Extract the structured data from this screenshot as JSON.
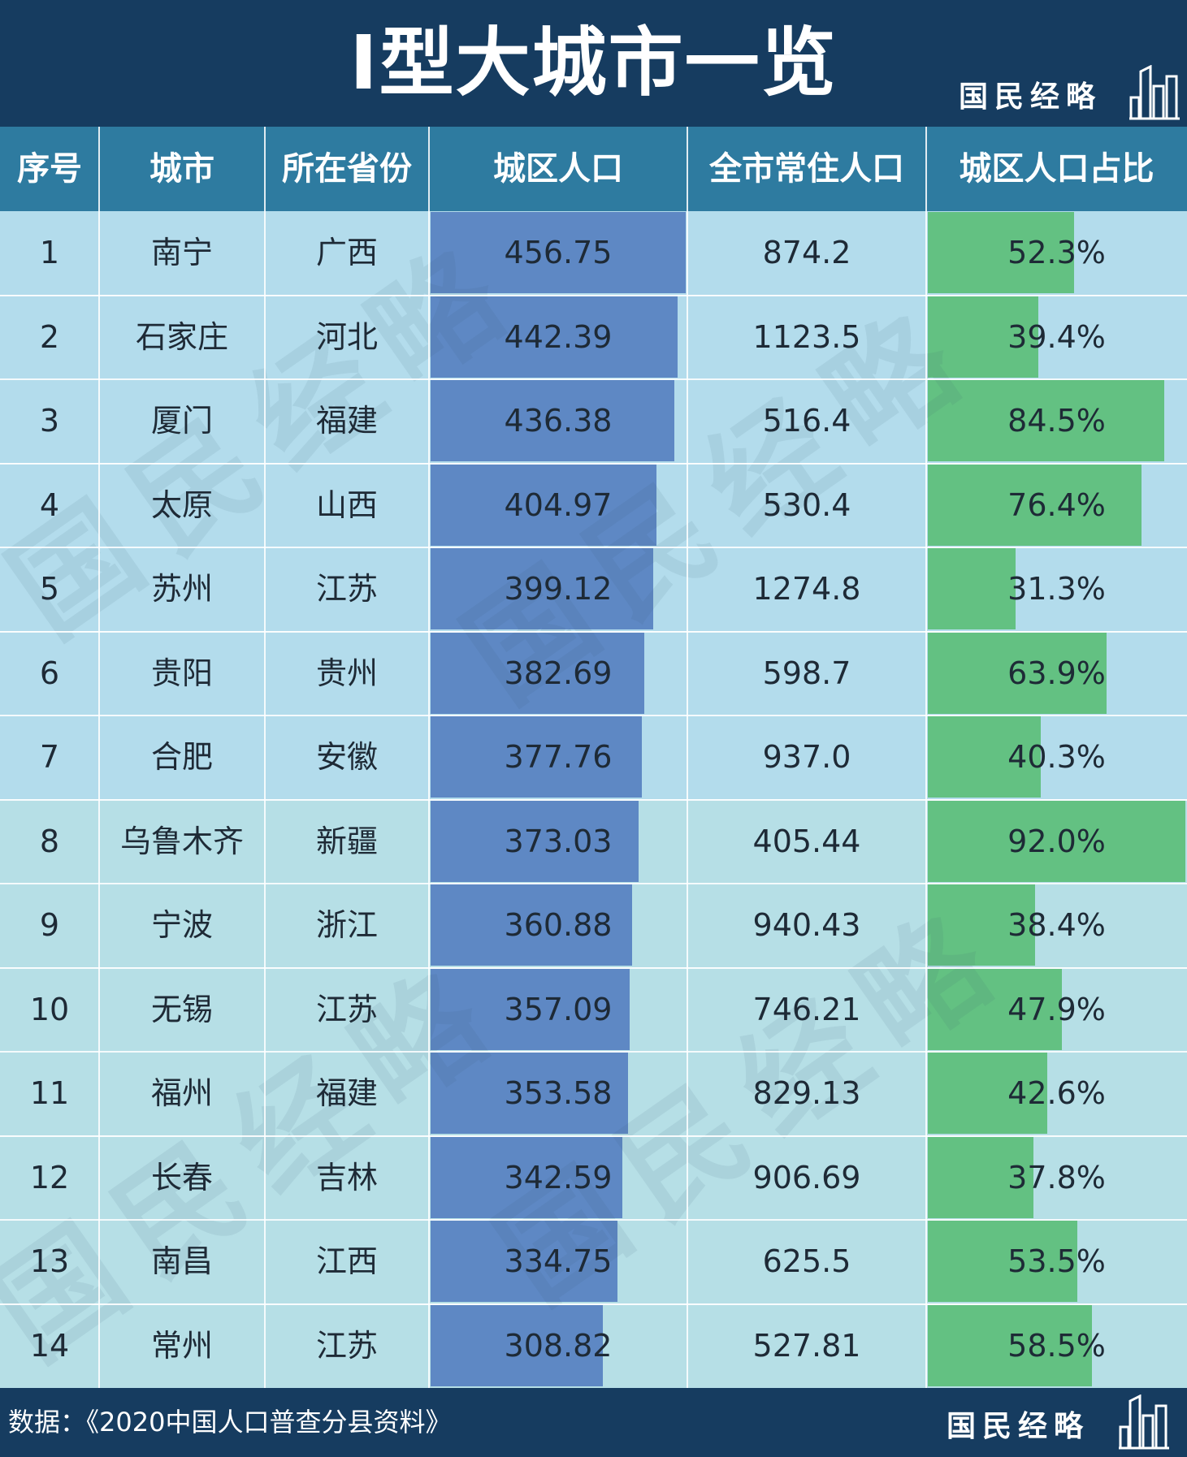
{
  "title": "I型大城市一览",
  "brand": "国民经略",
  "icons": {
    "brand_icon": "city-skyline-icon"
  },
  "colors": {
    "header_bg": "#163c60",
    "column_header_bg": "#2e7ba0",
    "row_bg_a": "#b3dcec",
    "row_bg_b": "#b6dfe6",
    "urban_population_bar": "#5e88c4",
    "urban_share_bar": "#63c182"
  },
  "columns": [
    "序号",
    "城市",
    "所在省份",
    "城区人口",
    "全市常住人口",
    "城区人口占比"
  ],
  "rows": [
    {
      "rank": "1",
      "city": "南宁",
      "province": "广西",
      "urban_pop": "456.75",
      "total_pop": "874.2",
      "share": "52.3%"
    },
    {
      "rank": "2",
      "city": "石家庄",
      "province": "河北",
      "urban_pop": "442.39",
      "total_pop": "1123.5",
      "share": "39.4%"
    },
    {
      "rank": "3",
      "city": "厦门",
      "province": "福建",
      "urban_pop": "436.38",
      "total_pop": "516.4",
      "share": "84.5%"
    },
    {
      "rank": "4",
      "city": "太原",
      "province": "山西",
      "urban_pop": "404.97",
      "total_pop": "530.4",
      "share": "76.4%"
    },
    {
      "rank": "5",
      "city": "苏州",
      "province": "江苏",
      "urban_pop": "399.12",
      "total_pop": "1274.8",
      "share": "31.3%"
    },
    {
      "rank": "6",
      "city": "贵阳",
      "province": "贵州",
      "urban_pop": "382.69",
      "total_pop": "598.7",
      "share": "63.9%"
    },
    {
      "rank": "7",
      "city": "合肥",
      "province": "安徽",
      "urban_pop": "377.76",
      "total_pop": "937.0",
      "share": "40.3%"
    },
    {
      "rank": "8",
      "city": "乌鲁木齐",
      "province": "新疆",
      "urban_pop": "373.03",
      "total_pop": "405.44",
      "share": "92.0%"
    },
    {
      "rank": "9",
      "city": "宁波",
      "province": "浙江",
      "urban_pop": "360.88",
      "total_pop": "940.43",
      "share": "38.4%"
    },
    {
      "rank": "10",
      "city": "无锡",
      "province": "江苏",
      "urban_pop": "357.09",
      "total_pop": "746.21",
      "share": "47.9%"
    },
    {
      "rank": "11",
      "city": "福州",
      "province": "福建",
      "urban_pop": "353.58",
      "total_pop": "829.13",
      "share": "42.6%"
    },
    {
      "rank": "12",
      "city": "长春",
      "province": "吉林",
      "urban_pop": "342.59",
      "total_pop": "906.69",
      "share": "37.8%"
    },
    {
      "rank": "13",
      "city": "南昌",
      "province": "江西",
      "urban_pop": "334.75",
      "total_pop": "625.5",
      "share": "53.5%"
    },
    {
      "rank": "14",
      "city": "常州",
      "province": "江苏",
      "urban_pop": "308.82",
      "total_pop": "527.81",
      "share": "58.5%"
    }
  ],
  "source": "数据：《2020中国人口普查分县资料》"
}
